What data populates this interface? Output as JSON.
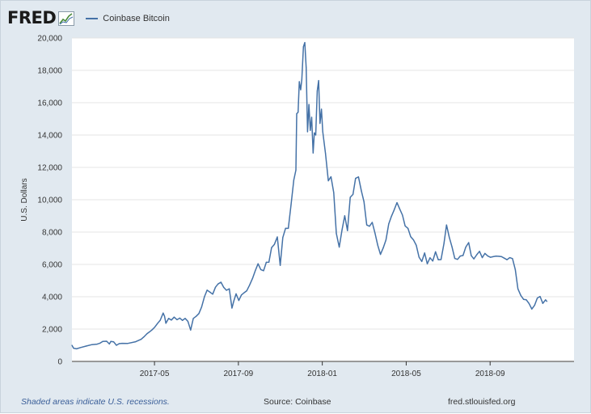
{
  "header": {
    "logo_text": "FRED",
    "legend_label": "Coinbase Bitcoin"
  },
  "footer": {
    "note": "Shaded areas indicate U.S. recessions.",
    "source": "Source: Coinbase",
    "site": "fred.stlouisfed.org"
  },
  "colors": {
    "line": "#4572a7",
    "frame_bg": "#e1e9f0",
    "plot_bg": "#ffffff",
    "grid": "#e4e4e4"
  },
  "chart_data": {
    "type": "line",
    "title": "",
    "xlabel": "",
    "ylabel": "U.S. Dollars",
    "ylim": [
      0,
      20000
    ],
    "xlim_days": [
      0,
      365
    ],
    "grid": true,
    "legend_position": "top-left",
    "y_ticks": [
      0,
      2000,
      4000,
      6000,
      8000,
      10000,
      12000,
      14000,
      16000,
      18000,
      20000
    ],
    "y_tick_labels": [
      "0",
      "2,000",
      "4,000",
      "6,000",
      "8,000",
      "10,000",
      "12,000",
      "14,000",
      "16,000",
      "18,000",
      "20,000"
    ],
    "x_ticks": [
      {
        "label": "2017-05",
        "day": 60
      },
      {
        "label": "2017-09",
        "day": 121
      },
      {
        "label": "2018-01",
        "day": 182
      },
      {
        "label": "2018-05",
        "day": 243
      },
      {
        "label": "2018-09",
        "day": 304
      }
    ],
    "series": [
      {
        "name": "Coinbase Bitcoin",
        "x_unit": "days since start of plotted range",
        "points": [
          [
            0,
            1000
          ],
          [
            1.2,
            820
          ],
          [
            3.3,
            780
          ],
          [
            6.3,
            860
          ],
          [
            10.3,
            950
          ],
          [
            14.5,
            1040
          ],
          [
            18.3,
            1070
          ],
          [
            20.4,
            1130
          ],
          [
            22.4,
            1240
          ],
          [
            25.2,
            1250
          ],
          [
            27.2,
            1080
          ],
          [
            28.3,
            1240
          ],
          [
            30.3,
            1210
          ],
          [
            32.3,
            1000
          ],
          [
            34.3,
            1100
          ],
          [
            36.4,
            1120
          ],
          [
            40.3,
            1110
          ],
          [
            46.3,
            1220
          ],
          [
            50.3,
            1370
          ],
          [
            52.3,
            1520
          ],
          [
            54.6,
            1720
          ],
          [
            56.4,
            1830
          ],
          [
            58.3,
            1960
          ],
          [
            60.2,
            2120
          ],
          [
            62.3,
            2360
          ],
          [
            64.2,
            2550
          ],
          [
            66.3,
            2990
          ],
          [
            67.3,
            2800
          ],
          [
            68.3,
            2360
          ],
          [
            70.3,
            2660
          ],
          [
            72.3,
            2560
          ],
          [
            74.3,
            2740
          ],
          [
            76.4,
            2580
          ],
          [
            78.4,
            2680
          ],
          [
            80.3,
            2540
          ],
          [
            82.3,
            2660
          ],
          [
            84.3,
            2480
          ],
          [
            86.3,
            1940
          ],
          [
            88.2,
            2660
          ],
          [
            90.3,
            2790
          ],
          [
            92.3,
            2960
          ],
          [
            94.3,
            3370
          ],
          [
            96.4,
            4020
          ],
          [
            98.3,
            4410
          ],
          [
            100.4,
            4280
          ],
          [
            102.3,
            4160
          ],
          [
            104.3,
            4590
          ],
          [
            106.2,
            4790
          ],
          [
            108.3,
            4900
          ],
          [
            110.3,
            4580
          ],
          [
            112.3,
            4400
          ],
          [
            114.4,
            4490
          ],
          [
            116.3,
            3300
          ],
          [
            117.8,
            3770
          ],
          [
            119.3,
            4180
          ],
          [
            121.3,
            3770
          ],
          [
            123.2,
            4110
          ],
          [
            125.5,
            4270
          ],
          [
            127.1,
            4370
          ],
          [
            129.1,
            4710
          ],
          [
            131.3,
            5140
          ],
          [
            133.3,
            5620
          ],
          [
            135.3,
            6040
          ],
          [
            137.3,
            5680
          ],
          [
            139.3,
            5610
          ],
          [
            141.3,
            6130
          ],
          [
            143.2,
            6140
          ],
          [
            145.1,
            7040
          ],
          [
            147.2,
            7240
          ],
          [
            149.3,
            7700
          ],
          [
            151.4,
            5940
          ],
          [
            153.3,
            7660
          ],
          [
            155.3,
            8230
          ],
          [
            157.3,
            8230
          ],
          [
            159.3,
            9690
          ],
          [
            161.3,
            11220
          ],
          [
            162.8,
            11830
          ],
          [
            163.4,
            15320
          ],
          [
            164.4,
            15410
          ],
          [
            165.3,
            17300
          ],
          [
            166.3,
            16800
          ],
          [
            167.1,
            17420
          ],
          [
            168.3,
            19460
          ],
          [
            169.3,
            19720
          ],
          [
            170.3,
            18180
          ],
          [
            171.3,
            14200
          ],
          [
            172.3,
            15890
          ],
          [
            173.3,
            14290
          ],
          [
            174.3,
            15100
          ],
          [
            175.3,
            12890
          ],
          [
            176.2,
            14130
          ],
          [
            177.2,
            14000
          ],
          [
            178.3,
            16720
          ],
          [
            179.3,
            17370
          ],
          [
            180.3,
            14720
          ],
          [
            181.4,
            15600
          ],
          [
            182.3,
            14210
          ],
          [
            184.3,
            12860
          ],
          [
            186.4,
            11170
          ],
          [
            188.3,
            11420
          ],
          [
            190.3,
            10440
          ],
          [
            192.2,
            7920
          ],
          [
            194.3,
            7070
          ],
          [
            196.3,
            8120
          ],
          [
            198.3,
            9010
          ],
          [
            200.3,
            8090
          ],
          [
            202.3,
            10150
          ],
          [
            204.3,
            10330
          ],
          [
            206.2,
            11320
          ],
          [
            208.3,
            11410
          ],
          [
            210.4,
            10540
          ],
          [
            212.3,
            9880
          ],
          [
            214.3,
            8440
          ],
          [
            216.3,
            8360
          ],
          [
            218.3,
            8600
          ],
          [
            220.3,
            7940
          ],
          [
            222.3,
            7190
          ],
          [
            224.3,
            6620
          ],
          [
            226.3,
            7020
          ],
          [
            228.3,
            7510
          ],
          [
            230.3,
            8500
          ],
          [
            232.3,
            8980
          ],
          [
            234.1,
            9340
          ],
          [
            236.3,
            9820
          ],
          [
            238.3,
            9430
          ],
          [
            240.3,
            9050
          ],
          [
            242.2,
            8380
          ],
          [
            244.3,
            8230
          ],
          [
            246.3,
            7710
          ],
          [
            248.3,
            7510
          ],
          [
            250.3,
            7180
          ],
          [
            252.3,
            6450
          ],
          [
            254.3,
            6180
          ],
          [
            256.4,
            6710
          ],
          [
            258.3,
            6040
          ],
          [
            260.3,
            6410
          ],
          [
            262.3,
            6210
          ],
          [
            264.3,
            6780
          ],
          [
            266.3,
            6290
          ],
          [
            268.3,
            6300
          ],
          [
            270.4,
            7280
          ],
          [
            272.3,
            8440
          ],
          [
            274.3,
            7680
          ],
          [
            276.3,
            7080
          ],
          [
            278.3,
            6370
          ],
          [
            280.3,
            6310
          ],
          [
            282.3,
            6520
          ],
          [
            284.3,
            6550
          ],
          [
            286.3,
            7070
          ],
          [
            288.4,
            7350
          ],
          [
            290.3,
            6540
          ],
          [
            292.2,
            6340
          ],
          [
            294.3,
            6600
          ],
          [
            296.3,
            6810
          ],
          [
            298.3,
            6420
          ],
          [
            300.2,
            6680
          ],
          [
            302.3,
            6520
          ],
          [
            304.3,
            6440
          ],
          [
            306.3,
            6480
          ],
          [
            308.3,
            6510
          ],
          [
            310.4,
            6500
          ],
          [
            312.3,
            6480
          ],
          [
            314.2,
            6390
          ],
          [
            316.3,
            6290
          ],
          [
            318.3,
            6420
          ],
          [
            320.3,
            6360
          ],
          [
            322.3,
            5670
          ],
          [
            324.2,
            4490
          ],
          [
            326.3,
            4080
          ],
          [
            328.3,
            3840
          ],
          [
            330.3,
            3810
          ],
          [
            332.3,
            3580
          ],
          [
            334.3,
            3240
          ],
          [
            336.4,
            3480
          ],
          [
            338.3,
            3920
          ],
          [
            340.3,
            4020
          ],
          [
            342.3,
            3590
          ],
          [
            344.3,
            3810
          ],
          [
            345.3,
            3710
          ]
        ]
      }
    ]
  }
}
